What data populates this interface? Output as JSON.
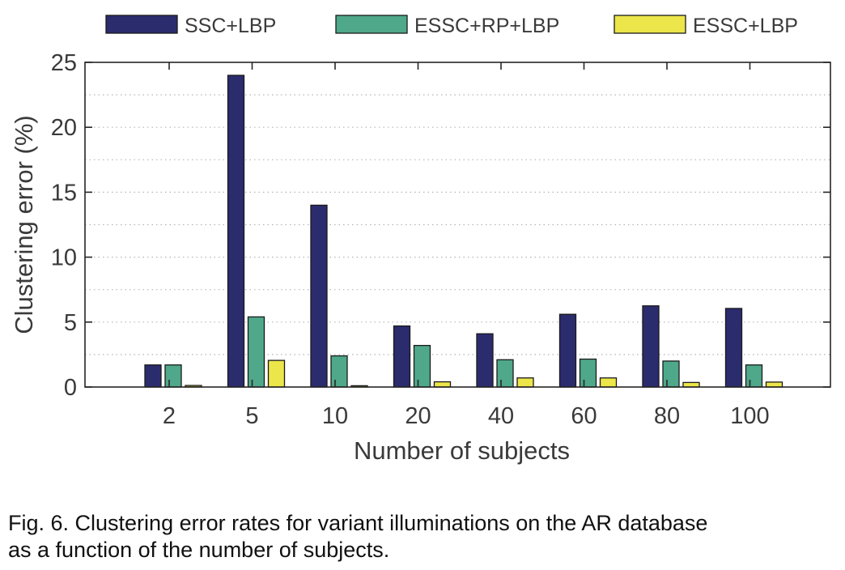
{
  "chart_data": {
    "type": "bar",
    "title": "",
    "xlabel": "Number of subjects",
    "ylabel": "Clustering error (%)",
    "categories": [
      "2",
      "5",
      "10",
      "20",
      "40",
      "60",
      "80",
      "100"
    ],
    "ylim": [
      0,
      25
    ],
    "yticks": [
      "0",
      "5",
      "10",
      "15",
      "20",
      "25"
    ],
    "grid": true,
    "legend_position": "top",
    "series": [
      {
        "name": "SSC+LBP",
        "color": "#2b2c6e",
        "values": [
          1.7,
          24.0,
          14.0,
          4.7,
          4.1,
          5.6,
          6.25,
          6.05
        ]
      },
      {
        "name": "ESSC+RP+LBP",
        "color": "#4fa88a",
        "values": [
          1.7,
          5.4,
          2.4,
          3.2,
          2.1,
          2.15,
          2.0,
          1.7
        ]
      },
      {
        "name": "ESSC+LBP",
        "color": "#ece64a",
        "values": [
          0.12,
          2.05,
          0.1,
          0.4,
          0.7,
          0.7,
          0.35,
          0.38
        ]
      }
    ]
  },
  "caption": {
    "line1": "Fig. 6. Clustering error rates for variant illuminations on the AR database",
    "line2": "as a function of the number of subjects."
  }
}
